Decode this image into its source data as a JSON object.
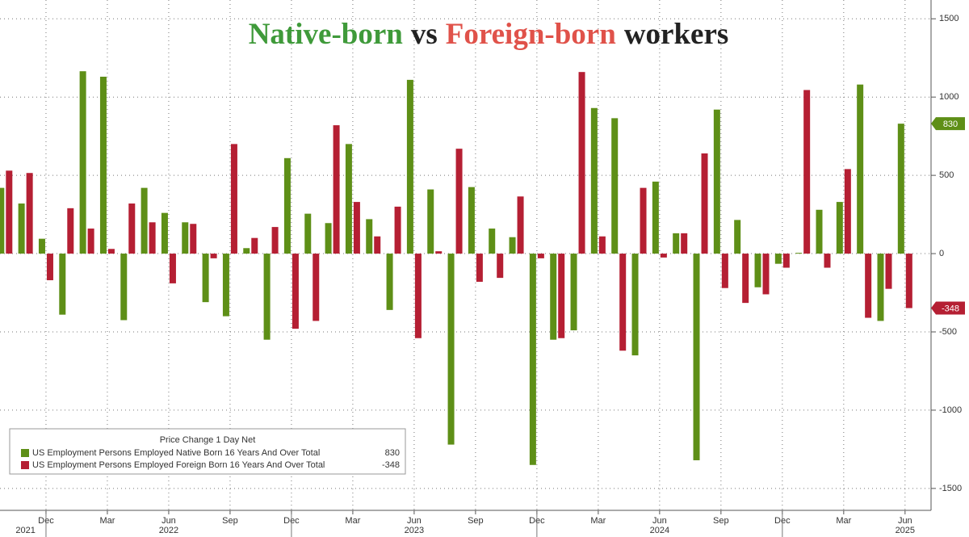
{
  "chart_data": {
    "type": "bar",
    "title_parts": [
      "Native-born",
      "vs",
      "Foreign-born",
      "workers"
    ],
    "title_colors": [
      "#3f9a3a",
      "#222222",
      "#e0524a",
      "#222222"
    ],
    "legend_title": "Price Change 1 Day Net",
    "categories": [
      null,
      null,
      "Dec",
      null,
      null,
      "Mar",
      null,
      null,
      "Jun",
      null,
      null,
      "Sep",
      null,
      null,
      "Dec",
      null,
      null,
      "Mar",
      null,
      null,
      "Jun",
      null,
      null,
      "Sep",
      null,
      null,
      "Dec",
      null,
      null,
      "Mar",
      null,
      null,
      "Jun",
      null,
      null,
      "Sep",
      null,
      null,
      "Dec",
      null,
      null,
      "Mar",
      null,
      null,
      "Jun"
    ],
    "year_labels": [
      null,
      "2021",
      null,
      null,
      null,
      null,
      null,
      null,
      "2022",
      null,
      null,
      null,
      null,
      null,
      null,
      null,
      null,
      null,
      null,
      null,
      "2023",
      null,
      null,
      null,
      null,
      null,
      null,
      null,
      null,
      null,
      null,
      null,
      "2024",
      null,
      null,
      null,
      null,
      null,
      null,
      null,
      null,
      null,
      null,
      null,
      "2025"
    ],
    "series": [
      {
        "name": "US Employment Persons Employed Native Born 16 Years And Over Total",
        "color": "#5e8f17",
        "values": [
          420,
          320,
          95,
          -390,
          1165,
          1130,
          -425,
          420,
          260,
          200,
          -310,
          -400,
          35,
          -550,
          610,
          255,
          195,
          700,
          220,
          -360,
          1110,
          410,
          -1220,
          425,
          160,
          105,
          -1350,
          -550,
          -490,
          930,
          865,
          -650,
          460,
          130,
          -1320,
          920,
          215,
          -215,
          -65,
          5,
          280,
          330,
          1080,
          -430,
          830
        ]
      },
      {
        "name": "US Employment Persons Employed Foreign Born 16 Years And Over Total",
        "color": "#b51f33",
        "values": [
          530,
          515,
          -170,
          290,
          160,
          30,
          320,
          200,
          -190,
          190,
          -30,
          700,
          100,
          170,
          -480,
          -430,
          820,
          330,
          110,
          300,
          -540,
          15,
          670,
          -180,
          -155,
          365,
          -30,
          -540,
          1160,
          110,
          -620,
          420,
          -25,
          130,
          640,
          -220,
          -315,
          -260,
          -90,
          1045,
          -90,
          540,
          -410,
          -225,
          -348
        ]
      }
    ],
    "ylim": [
      -1640,
      1620
    ],
    "yticks": [
      -1500,
      -1000,
      -500,
      0,
      500,
      1000,
      1500
    ],
    "grid": true
  }
}
